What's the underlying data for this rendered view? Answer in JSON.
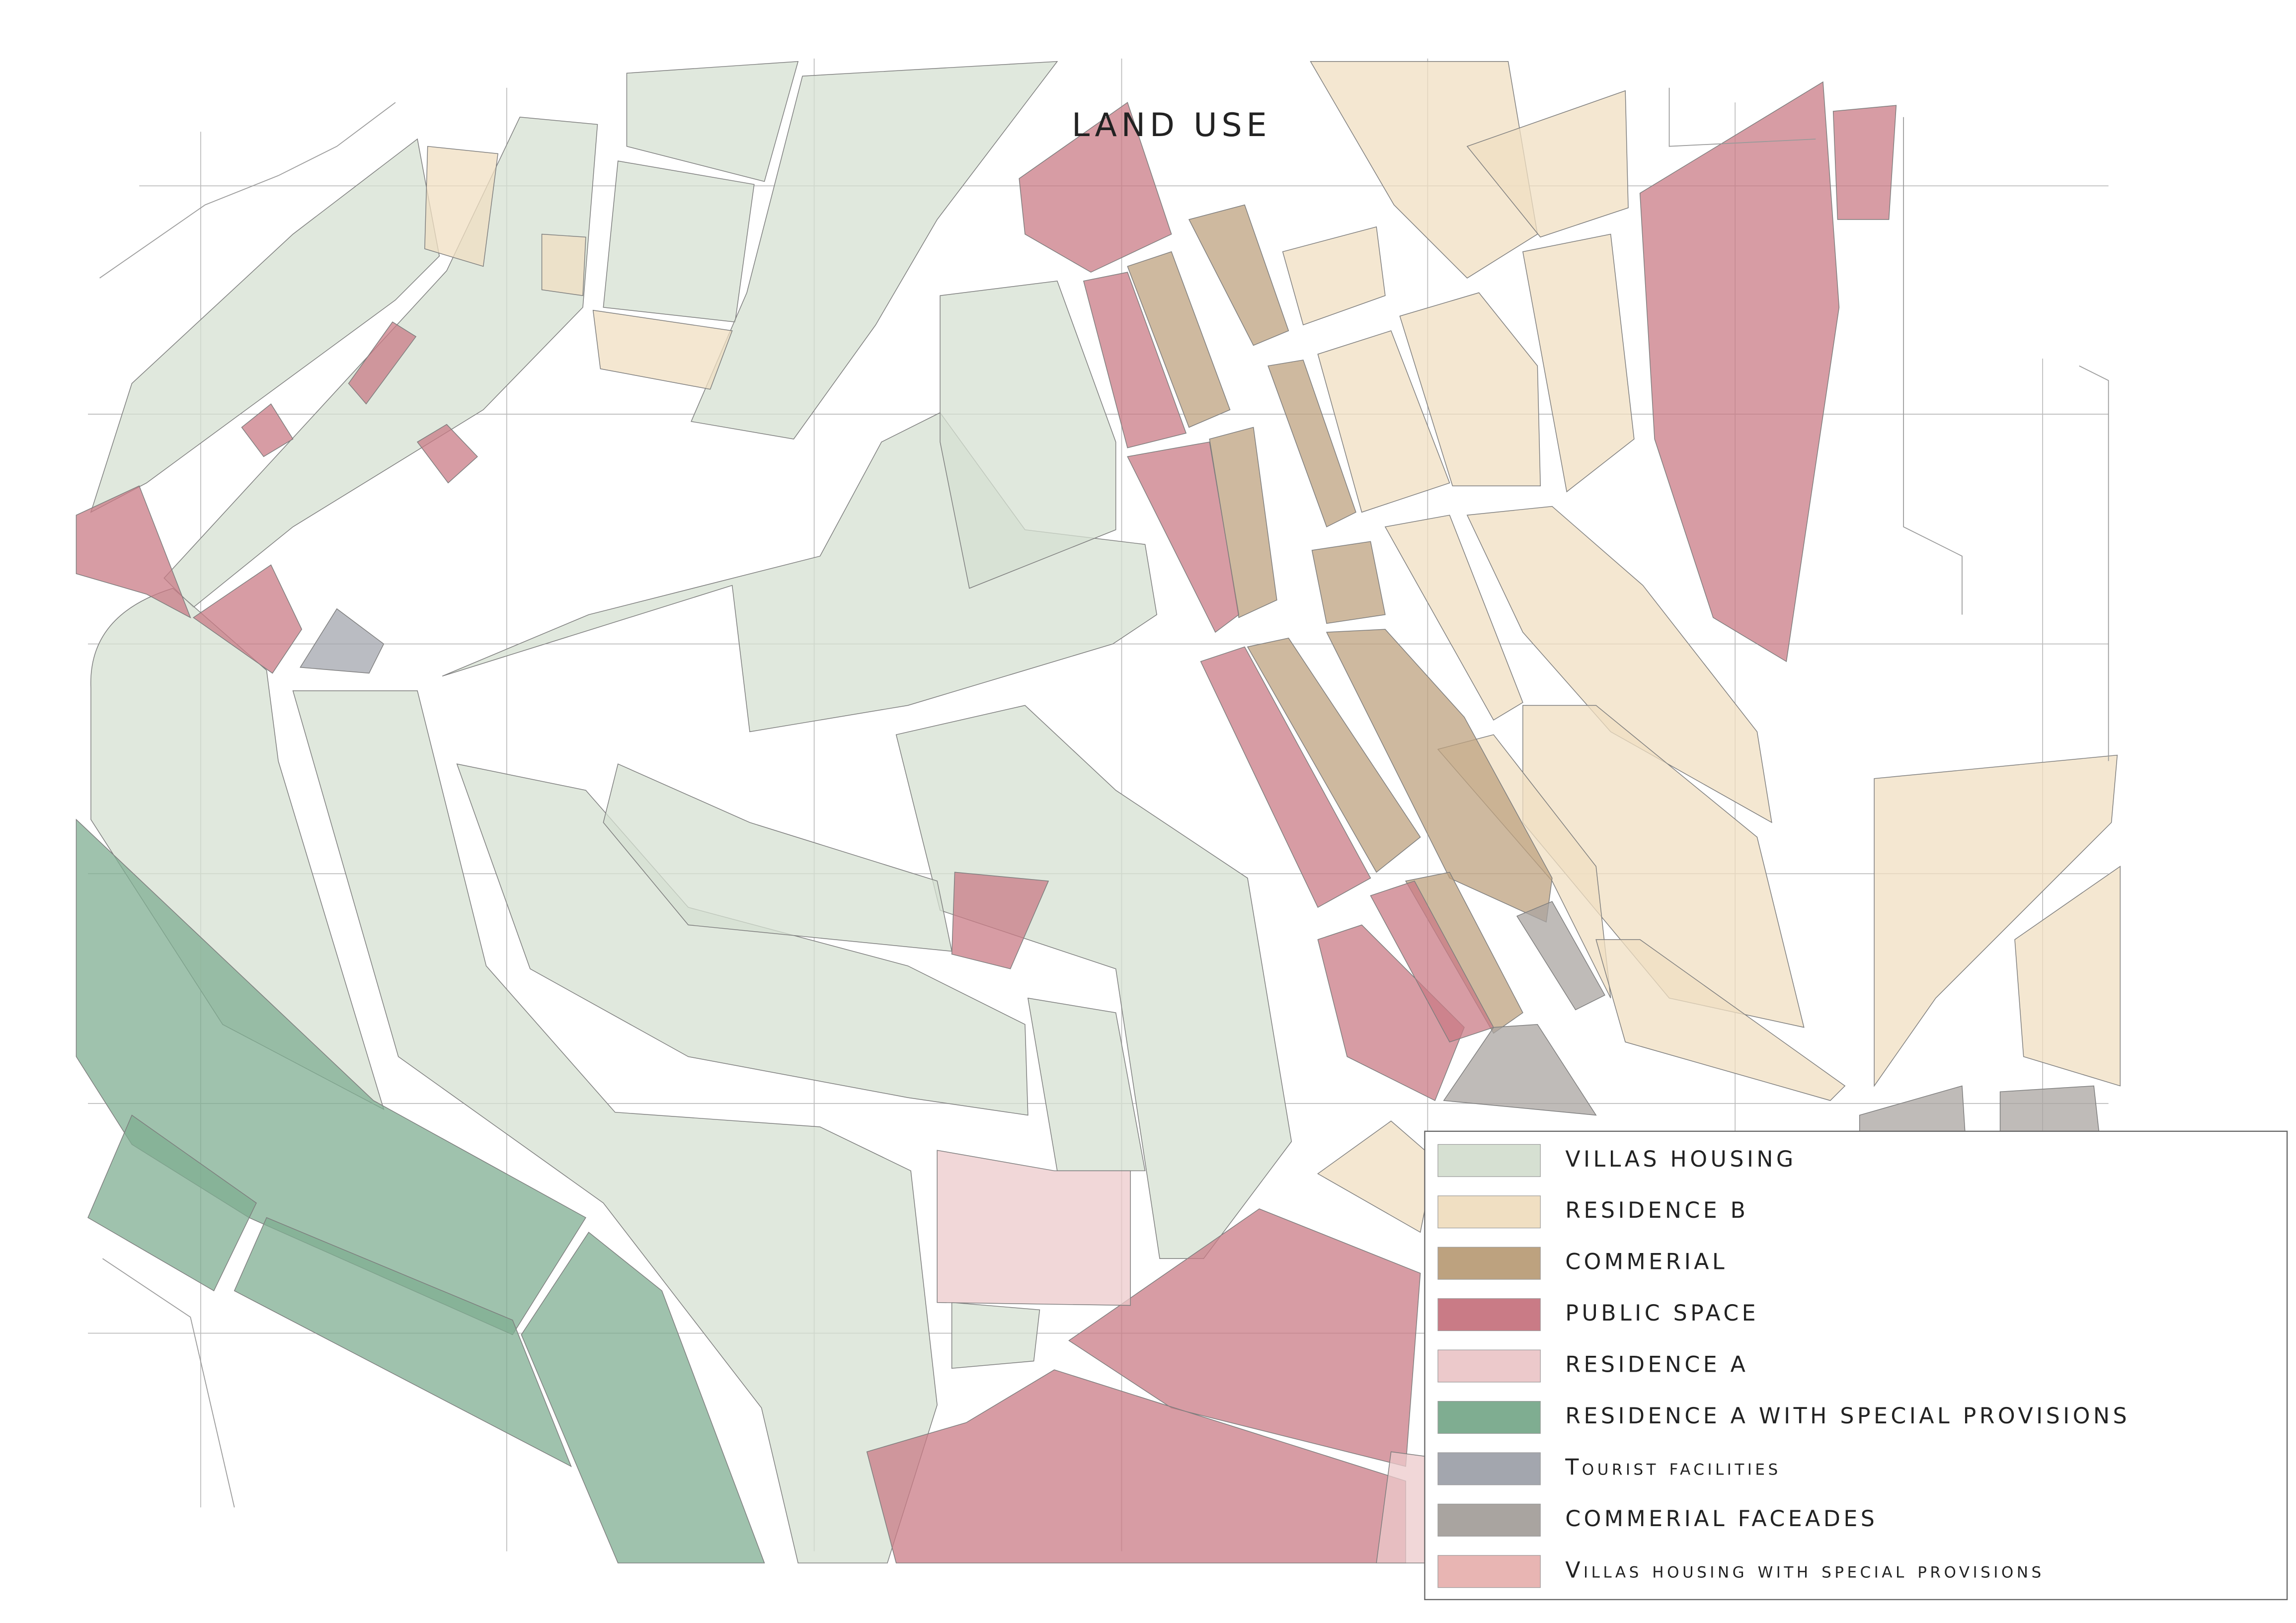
{
  "title": "LAND USE",
  "legend": {
    "items": [
      {
        "label": "VILLAS HOUSING",
        "color": "#d6e0d2"
      },
      {
        "label": "RESIDENCE B",
        "color": "#f0dfc2"
      },
      {
        "label": "COMMERIAL",
        "color": "#bda27f"
      },
      {
        "label": "PUBLIC SPACE",
        "color": "#c97b86"
      },
      {
        "label": "RESIDENCE A",
        "color": "#ecc9cb"
      },
      {
        "label": "RESIDENCE A WITH SPECIAL PROVISIONS",
        "color": "#7fad91"
      },
      {
        "label": "Tourist facilities",
        "color": "#a3a6ae"
      },
      {
        "label": "COMMERIAL FACEADES",
        "color": "#a9a4a0"
      },
      {
        "label": "Villas housing with special provisions",
        "color": "#e8b5b3"
      }
    ]
  }
}
